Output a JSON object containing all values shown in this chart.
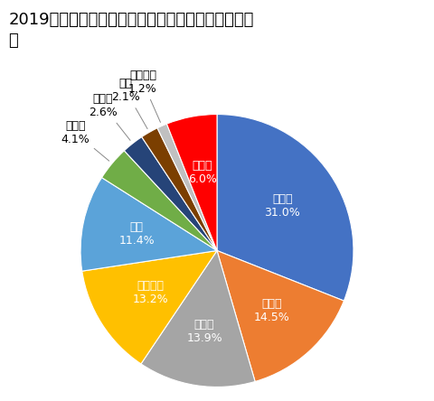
{
  "title": "2019年日本のメーカー（ブランド別）新車販売シェア",
  "labels": [
    "トヨタ",
    "ホンダ",
    "スズキ",
    "ダイハツ",
    "日産",
    "マツダ",
    "スバル",
    "三菱",
    "レクサス",
    "輸入車"
  ],
  "values": [
    31.0,
    14.5,
    13.9,
    13.2,
    11.4,
    4.1,
    2.6,
    2.1,
    1.2,
    6.0
  ],
  "colors": [
    "#4472C4",
    "#ED7D31",
    "#A5A5A5",
    "#FFC000",
    "#5BA3D9",
    "#70AD47",
    "#264478",
    "#7B3F00",
    "#C0C0C0",
    "#FF0000"
  ],
  "startangle": 90,
  "title_fontsize": 13,
  "inside_label_fontsize": 9,
  "outside_label_fontsize": 9
}
